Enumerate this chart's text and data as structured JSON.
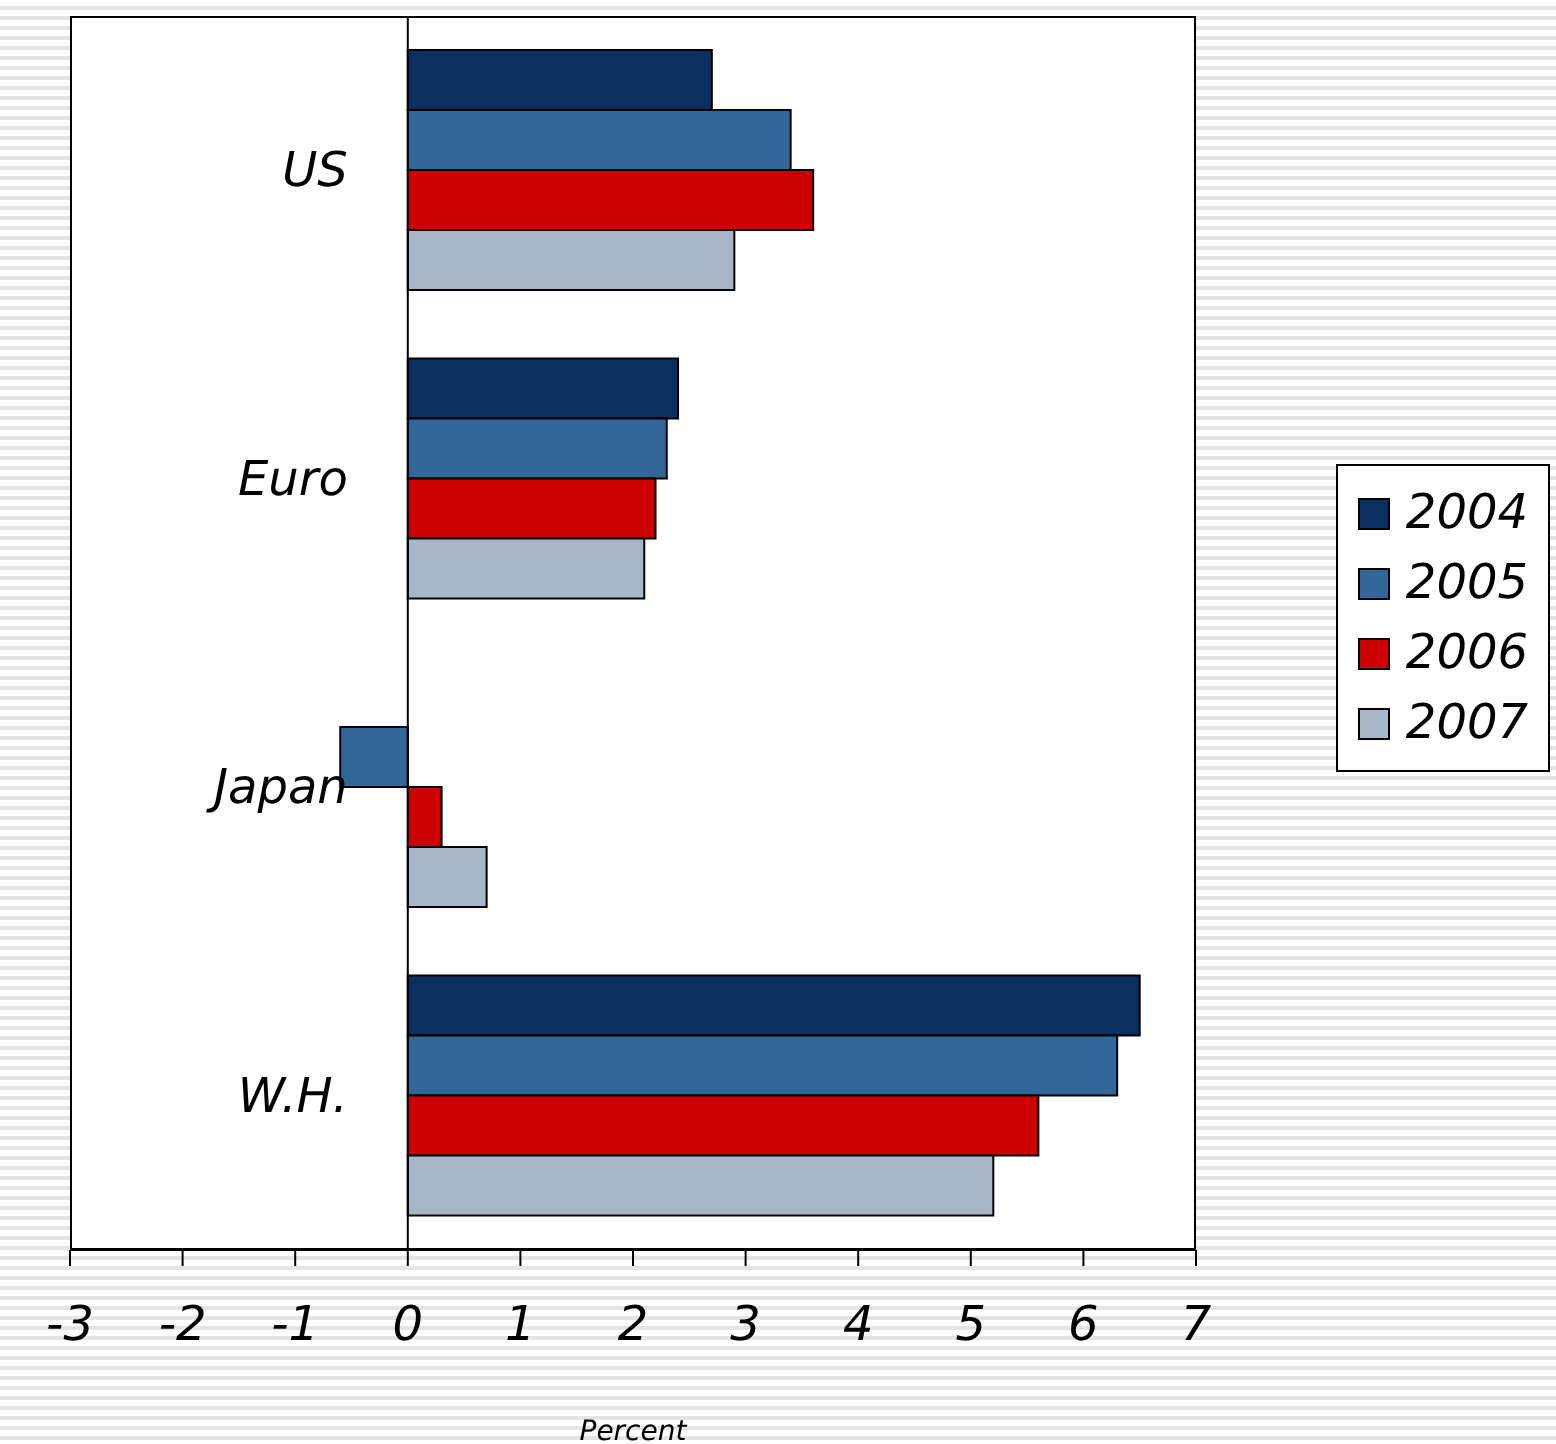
{
  "chart_data": {
    "type": "bar",
    "orientation": "horizontal",
    "xlabel": "Percent",
    "categories": [
      "US",
      "Euro",
      "Japan",
      "W.H."
    ],
    "series": [
      {
        "name": "2004",
        "color": "#0b2f5f",
        "values": [
          2.7,
          2.4,
          0,
          6.5
        ]
      },
      {
        "name": "2005",
        "color": "#336699",
        "values": [
          3.4,
          2.3,
          -0.6,
          6.3
        ]
      },
      {
        "name": "2006",
        "color": "#cc0000",
        "values": [
          3.6,
          2.2,
          0.3,
          5.6
        ]
      },
      {
        "name": "2007",
        "color": "#a6b7c9",
        "values": [
          2.9,
          2.1,
          0.7,
          5.2
        ]
      }
    ],
    "xlim": [
      -3,
      7
    ],
    "xticks": [
      -3,
      -2,
      -1,
      0,
      1,
      2,
      3,
      4,
      5,
      6,
      7
    ],
    "grid": false,
    "legend": "right"
  }
}
